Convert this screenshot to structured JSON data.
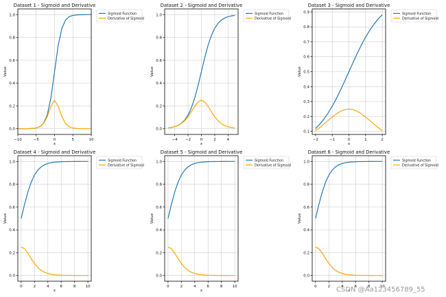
{
  "colors": {
    "sigmoid": "#1f77b4",
    "derivative": "#ffa500",
    "grid": "#cccccc",
    "axis": "#000000",
    "text": "#111111",
    "watermark": "#999999"
  },
  "watermark": "CSDN @Aa123456789_55",
  "chart_data": [
    {
      "type": "line",
      "title": "Dataset 1 - Sigmoid and Derivative",
      "xlabel": "x",
      "ylabel": "Value",
      "xlim": [
        -10,
        10
      ],
      "ylim": [
        -0.05,
        1.05
      ],
      "xticks": [
        -10,
        -5,
        0,
        5,
        10
      ],
      "xtick_labels": [
        "-10",
        "-5",
        "0",
        "5",
        "10"
      ],
      "yticks": [
        0.0,
        0.2,
        0.4,
        0.6,
        0.8,
        1.0
      ],
      "ytick_labels": [
        "0.0",
        "0.2",
        "0.4",
        "0.6",
        "0.8",
        "1.0"
      ],
      "grid": true,
      "legend": "upper-right-outside",
      "x": [
        -10,
        -9,
        -8,
        -7,
        -6,
        -5,
        -4,
        -3,
        -2,
        -1,
        0,
        1,
        2,
        3,
        4,
        5,
        6,
        7,
        8,
        9,
        10
      ],
      "series": [
        {
          "name": "Sigmoid Function",
          "values": [
            0.0,
            0.0001,
            0.0003,
            0.0009,
            0.0025,
            0.0067,
            0.018,
            0.0474,
            0.1192,
            0.2689,
            0.5,
            0.7311,
            0.8808,
            0.9526,
            0.982,
            0.9933,
            0.9975,
            0.9991,
            0.9997,
            0.9999,
            1.0
          ]
        },
        {
          "name": "Derivative of Sigmoid",
          "values": [
            0.0,
            0.0001,
            0.0003,
            0.0009,
            0.0025,
            0.0066,
            0.0177,
            0.0452,
            0.105,
            0.1966,
            0.25,
            0.1966,
            0.105,
            0.0452,
            0.0177,
            0.0066,
            0.0025,
            0.0009,
            0.0003,
            0.0001,
            0.0
          ]
        }
      ]
    },
    {
      "type": "line",
      "title": "Dataset 2 - Sigmoid and Derivative",
      "xlabel": "x",
      "ylabel": "Value",
      "xlim": [
        -5.5,
        5.5
      ],
      "ylim": [
        -0.05,
        1.05
      ],
      "xticks": [
        -4,
        -2,
        0,
        2,
        4
      ],
      "xtick_labels": [
        "-4",
        "-2",
        "0",
        "2",
        "4"
      ],
      "yticks": [
        0.0,
        0.2,
        0.4,
        0.6,
        0.8,
        1.0
      ],
      "ytick_labels": [
        "0.0",
        "0.2",
        "0.4",
        "0.6",
        "0.8",
        "1.0"
      ],
      "grid": true,
      "legend": "upper-right-outside",
      "x": [
        -5,
        -4.5,
        -4,
        -3.5,
        -3,
        -2.5,
        -2,
        -1.5,
        -1,
        -0.5,
        0,
        0.5,
        1,
        1.5,
        2,
        2.5,
        3,
        3.5,
        4,
        4.5,
        5
      ],
      "series": [
        {
          "name": "Sigmoid Function",
          "values": [
            0.0067,
            0.011,
            0.018,
            0.0293,
            0.0474,
            0.0759,
            0.1192,
            0.1824,
            0.2689,
            0.3775,
            0.5,
            0.6225,
            0.7311,
            0.8176,
            0.8808,
            0.9241,
            0.9526,
            0.9707,
            0.982,
            0.989,
            0.9933
          ]
        },
        {
          "name": "Derivative of Sigmoid",
          "values": [
            0.0066,
            0.0109,
            0.0177,
            0.0285,
            0.0452,
            0.0701,
            0.105,
            0.1491,
            0.1966,
            0.235,
            0.25,
            0.235,
            0.1966,
            0.1491,
            0.105,
            0.0701,
            0.0452,
            0.0285,
            0.0177,
            0.0109,
            0.0066
          ]
        }
      ]
    },
    {
      "type": "line",
      "title": "Dataset 3 - Sigmoid and Derivative",
      "xlabel": "x",
      "ylabel": "Value",
      "xlim": [
        -2.2,
        2.2
      ],
      "ylim": [
        0.08,
        0.92
      ],
      "xticks": [
        -2,
        -1,
        0,
        1,
        2
      ],
      "xtick_labels": [
        "-2",
        "-1",
        "0",
        "1",
        "2"
      ],
      "yticks": [
        0.1,
        0.2,
        0.3,
        0.4,
        0.5,
        0.6,
        0.7,
        0.8,
        0.9
      ],
      "ytick_labels": [
        "0.1",
        "0.2",
        "0.3",
        "0.4",
        "0.5",
        "0.6",
        "0.7",
        "0.8",
        "0.9"
      ],
      "grid": true,
      "legend": "upper-right-outside",
      "x": [
        -2,
        -1.75,
        -1.5,
        -1.25,
        -1,
        -0.75,
        -0.5,
        -0.25,
        0,
        0.25,
        0.5,
        0.75,
        1,
        1.25,
        1.5,
        1.75,
        2
      ],
      "series": [
        {
          "name": "Sigmoid Function",
          "values": [
            0.1192,
            0.148,
            0.1824,
            0.2227,
            0.2689,
            0.3208,
            0.3775,
            0.4378,
            0.5,
            0.5622,
            0.6225,
            0.6792,
            0.7311,
            0.7773,
            0.8176,
            0.852,
            0.8808
          ]
        },
        {
          "name": "Derivative of Sigmoid",
          "values": [
            0.105,
            0.1261,
            0.1491,
            0.1731,
            0.1966,
            0.2179,
            0.235,
            0.2461,
            0.25,
            0.2461,
            0.235,
            0.2179,
            0.1966,
            0.1731,
            0.1491,
            0.1261,
            0.105
          ]
        }
      ]
    },
    {
      "type": "line",
      "title": "Dataset 4 - Sigmoid and Derivative",
      "xlabel": "x",
      "ylabel": "Value",
      "xlim": [
        -0.5,
        10.5
      ],
      "ylim": [
        -0.05,
        1.05
      ],
      "xticks": [
        0,
        2,
        4,
        6,
        8,
        10
      ],
      "xtick_labels": [
        "0",
        "2",
        "4",
        "6",
        "8",
        "10"
      ],
      "yticks": [
        0.0,
        0.2,
        0.4,
        0.6,
        0.8,
        1.0
      ],
      "ytick_labels": [
        "0.0",
        "0.2",
        "0.4",
        "0.6",
        "0.8",
        "1.0"
      ],
      "grid": true,
      "legend": "upper-right-outside",
      "x": [
        0,
        0.5,
        1,
        1.5,
        2,
        2.5,
        3,
        3.5,
        4,
        4.5,
        5,
        5.5,
        6,
        6.5,
        7,
        7.5,
        8,
        8.5,
        9,
        9.5,
        10
      ],
      "series": [
        {
          "name": "Sigmoid Function",
          "values": [
            0.5,
            0.6225,
            0.7311,
            0.8176,
            0.8808,
            0.9241,
            0.9526,
            0.9707,
            0.982,
            0.989,
            0.9933,
            0.9959,
            0.9975,
            0.9985,
            0.9991,
            0.9994,
            0.9997,
            0.9998,
            0.9999,
            0.9999,
            1.0
          ]
        },
        {
          "name": "Derivative of Sigmoid",
          "values": [
            0.25,
            0.235,
            0.1966,
            0.1491,
            0.105,
            0.0701,
            0.0452,
            0.0285,
            0.0177,
            0.0109,
            0.0066,
            0.0041,
            0.0025,
            0.0015,
            0.0009,
            0.0006,
            0.0003,
            0.0002,
            0.0001,
            0.0001,
            0.0
          ]
        }
      ]
    },
    {
      "type": "line",
      "title": "Dataset 5 - Sigmoid and Derivative",
      "xlabel": "x",
      "ylabel": "Value",
      "xlim": [
        -0.5,
        10.5
      ],
      "ylim": [
        -0.05,
        1.05
      ],
      "xticks": [
        0,
        2,
        4,
        6,
        8,
        10
      ],
      "xtick_labels": [
        "0",
        "2",
        "4",
        "6",
        "8",
        "10"
      ],
      "yticks": [
        0.0,
        0.2,
        0.4,
        0.6,
        0.8,
        1.0
      ],
      "ytick_labels": [
        "0.0",
        "0.2",
        "0.4",
        "0.6",
        "0.8",
        "1.0"
      ],
      "grid": true,
      "legend": "upper-right-outside",
      "x": [
        0,
        0.5,
        1,
        1.5,
        2,
        2.5,
        3,
        3.5,
        4,
        4.5,
        5,
        5.5,
        6,
        6.5,
        7,
        7.5,
        8,
        8.5,
        9,
        9.5,
        10
      ],
      "series": [
        {
          "name": "Sigmoid Function",
          "values": [
            0.5,
            0.6225,
            0.7311,
            0.8176,
            0.8808,
            0.9241,
            0.9526,
            0.9707,
            0.982,
            0.989,
            0.9933,
            0.9959,
            0.9975,
            0.9985,
            0.9991,
            0.9994,
            0.9997,
            0.9998,
            0.9999,
            0.9999,
            1.0
          ]
        },
        {
          "name": "Derivative of Sigmoid",
          "values": [
            0.25,
            0.235,
            0.1966,
            0.1491,
            0.105,
            0.0701,
            0.0452,
            0.0285,
            0.0177,
            0.0109,
            0.0066,
            0.0041,
            0.0025,
            0.0015,
            0.0009,
            0.0006,
            0.0003,
            0.0002,
            0.0001,
            0.0001,
            0.0
          ]
        }
      ]
    },
    {
      "type": "line",
      "title": "Dataset 6 - Sigmoid and Derivative",
      "xlabel": "x",
      "ylabel": "Value",
      "xlim": [
        -0.5,
        10.5
      ],
      "ylim": [
        -0.05,
        1.05
      ],
      "xticks": [
        0,
        2,
        4,
        6,
        8,
        10
      ],
      "xtick_labels": [
        "0",
        "2",
        "4",
        "6",
        "8",
        "10"
      ],
      "yticks": [
        0.0,
        0.2,
        0.4,
        0.6,
        0.8,
        1.0
      ],
      "ytick_labels": [
        "0.0",
        "0.2",
        "0.4",
        "0.6",
        "0.8",
        "1.0"
      ],
      "grid": true,
      "legend": "upper-right-outside",
      "x": [
        0,
        0.5,
        1,
        1.5,
        2,
        2.5,
        3,
        3.5,
        4,
        4.5,
        5,
        5.5,
        6,
        6.5,
        7,
        7.5,
        8,
        8.5,
        9,
        9.5,
        10
      ],
      "series": [
        {
          "name": "Sigmoid Function",
          "values": [
            0.5,
            0.6225,
            0.7311,
            0.8176,
            0.8808,
            0.9241,
            0.9526,
            0.9707,
            0.982,
            0.989,
            0.9933,
            0.9959,
            0.9975,
            0.9985,
            0.9991,
            0.9994,
            0.9997,
            0.9998,
            0.9999,
            0.9999,
            1.0
          ]
        },
        {
          "name": "Derivative of Sigmoid",
          "values": [
            0.25,
            0.235,
            0.1966,
            0.1491,
            0.105,
            0.0701,
            0.0452,
            0.0285,
            0.0177,
            0.0109,
            0.0066,
            0.0041,
            0.0025,
            0.0015,
            0.0009,
            0.0006,
            0.0003,
            0.0002,
            0.0001,
            0.0001,
            0.0
          ]
        }
      ]
    }
  ]
}
